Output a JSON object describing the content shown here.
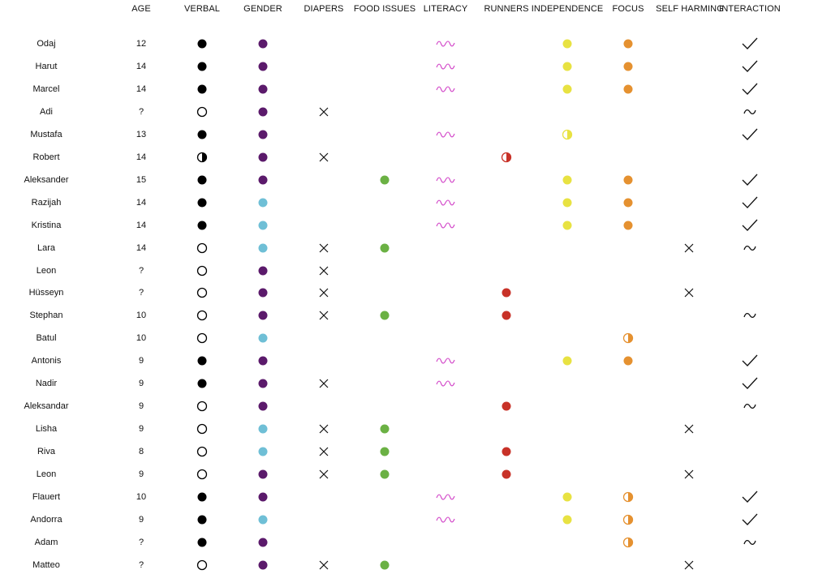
{
  "chart_data": {
    "type": "table",
    "columns": [
      {
        "key": "name",
        "label": ""
      },
      {
        "key": "age",
        "label": "AGE"
      },
      {
        "key": "verbal",
        "label": "VERBAL"
      },
      {
        "key": "gender",
        "label": "GENDER"
      },
      {
        "key": "diapers",
        "label": "DIAPERS"
      },
      {
        "key": "food",
        "label": "FOOD ISSUES"
      },
      {
        "key": "literacy",
        "label": "LITERACY"
      },
      {
        "key": "runners",
        "label": "RUNNERS"
      },
      {
        "key": "independence",
        "label": "INDEPENDENCE"
      },
      {
        "key": "focus",
        "label": "FOCUS"
      },
      {
        "key": "selfharm",
        "label": "SELF HARMING"
      },
      {
        "key": "interaction",
        "label": "INTERACTION"
      }
    ],
    "colors": {
      "verbal": "#000000",
      "gender_purple": "#5b1a6b",
      "gender_blue": "#6fbfd6",
      "food": "#6bb144",
      "literacy": "#d03ec6",
      "runners": "#c83228",
      "independence": "#e8e242",
      "focus": "#e59130"
    },
    "rows": [
      {
        "name": "Odaj",
        "age": "12",
        "verbal": "full",
        "gender": "purple",
        "diapers": "",
        "food": "",
        "literacy": "wave",
        "runners": "",
        "independence": "full",
        "focus": "full",
        "selfharm": "",
        "interaction": "check"
      },
      {
        "name": "Harut",
        "age": "14",
        "verbal": "full",
        "gender": "purple",
        "diapers": "",
        "food": "",
        "literacy": "wave",
        "runners": "",
        "independence": "full",
        "focus": "full",
        "selfharm": "",
        "interaction": "check"
      },
      {
        "name": "Marcel",
        "age": "14",
        "verbal": "full",
        "gender": "purple",
        "diapers": "",
        "food": "",
        "literacy": "wave",
        "runners": "",
        "independence": "full",
        "focus": "full",
        "selfharm": "",
        "interaction": "check"
      },
      {
        "name": "Adi",
        "age": "?",
        "verbal": "empty",
        "gender": "purple",
        "diapers": "x",
        "food": "",
        "literacy": "",
        "runners": "",
        "independence": "",
        "focus": "",
        "selfharm": "",
        "interaction": "tilde"
      },
      {
        "name": "Mustafa",
        "age": "13",
        "verbal": "full",
        "gender": "purple",
        "diapers": "",
        "food": "",
        "literacy": "wave",
        "runners": "",
        "independence": "half",
        "focus": "",
        "selfharm": "",
        "interaction": "check"
      },
      {
        "name": "Robert",
        "age": "14",
        "verbal": "half",
        "gender": "purple",
        "diapers": "x",
        "food": "",
        "literacy": "",
        "runners": "half",
        "independence": "",
        "focus": "",
        "selfharm": "",
        "interaction": ""
      },
      {
        "name": "Aleksander",
        "age": "15",
        "verbal": "full",
        "gender": "purple",
        "diapers": "",
        "food": "full",
        "literacy": "wave",
        "runners": "",
        "independence": "full",
        "focus": "full",
        "selfharm": "",
        "interaction": "check"
      },
      {
        "name": "Razijah",
        "age": "14",
        "verbal": "full",
        "gender": "blue",
        "diapers": "",
        "food": "",
        "literacy": "wave",
        "runners": "",
        "independence": "full",
        "focus": "full",
        "selfharm": "",
        "interaction": "check"
      },
      {
        "name": "Kristina",
        "age": "14",
        "verbal": "full",
        "gender": "blue",
        "diapers": "",
        "food": "",
        "literacy": "wave",
        "runners": "",
        "independence": "full",
        "focus": "full",
        "selfharm": "",
        "interaction": "check"
      },
      {
        "name": "Lara",
        "age": "14",
        "verbal": "empty",
        "gender": "blue",
        "diapers": "x",
        "food": "full",
        "literacy": "",
        "runners": "",
        "independence": "",
        "focus": "",
        "selfharm": "x",
        "interaction": "tilde"
      },
      {
        "name": "Leon",
        "age": "?",
        "verbal": "empty",
        "gender": "purple",
        "diapers": "x",
        "food": "",
        "literacy": "",
        "runners": "",
        "independence": "",
        "focus": "",
        "selfharm": "",
        "interaction": ""
      },
      {
        "name": "Hüsseyn",
        "age": "?",
        "verbal": "empty",
        "gender": "purple",
        "diapers": "x",
        "food": "",
        "literacy": "",
        "runners": "full",
        "independence": "",
        "focus": "",
        "selfharm": "x",
        "interaction": ""
      },
      {
        "name": "Stephan",
        "age": "10",
        "verbal": "empty",
        "gender": "purple",
        "diapers": "x",
        "food": "full",
        "literacy": "",
        "runners": "full",
        "independence": "",
        "focus": "",
        "selfharm": "",
        "interaction": "tilde"
      },
      {
        "name": "Batul",
        "age": "10",
        "verbal": "empty",
        "gender": "blue",
        "diapers": "",
        "food": "",
        "literacy": "",
        "runners": "",
        "independence": "",
        "focus": "half",
        "selfharm": "",
        "interaction": ""
      },
      {
        "name": "Antonis",
        "age": "9",
        "verbal": "full",
        "gender": "purple",
        "diapers": "",
        "food": "",
        "literacy": "wave",
        "runners": "",
        "independence": "full",
        "focus": "full",
        "selfharm": "",
        "interaction": "check"
      },
      {
        "name": "Nadir",
        "age": "9",
        "verbal": "full",
        "gender": "purple",
        "diapers": "x",
        "food": "",
        "literacy": "wave",
        "runners": "",
        "independence": "",
        "focus": "",
        "selfharm": "",
        "interaction": "check"
      },
      {
        "name": "Aleksandar",
        "age": "9",
        "verbal": "empty",
        "gender": "purple",
        "diapers": "",
        "food": "",
        "literacy": "",
        "runners": "full",
        "independence": "",
        "focus": "",
        "selfharm": "",
        "interaction": "tilde"
      },
      {
        "name": "Lisha",
        "age": "9",
        "verbal": "empty",
        "gender": "blue",
        "diapers": "x",
        "food": "full",
        "literacy": "",
        "runners": "",
        "independence": "",
        "focus": "",
        "selfharm": "x",
        "interaction": ""
      },
      {
        "name": "Riva",
        "age": "8",
        "verbal": "empty",
        "gender": "blue",
        "diapers": "x",
        "food": "full",
        "literacy": "",
        "runners": "full",
        "independence": "",
        "focus": "",
        "selfharm": "",
        "interaction": ""
      },
      {
        "name": "Leon",
        "age": "9",
        "verbal": "empty",
        "gender": "purple",
        "diapers": "x",
        "food": "full",
        "literacy": "",
        "runners": "full",
        "independence": "",
        "focus": "",
        "selfharm": "x",
        "interaction": ""
      },
      {
        "name": "Flauert",
        "age": "10",
        "verbal": "full",
        "gender": "purple",
        "diapers": "",
        "food": "",
        "literacy": "wave",
        "runners": "",
        "independence": "full",
        "focus": "half",
        "selfharm": "",
        "interaction": "check"
      },
      {
        "name": "Andorra",
        "age": "9",
        "verbal": "full",
        "gender": "blue",
        "diapers": "",
        "food": "",
        "literacy": "wave",
        "runners": "",
        "independence": "full",
        "focus": "half",
        "selfharm": "",
        "interaction": "check"
      },
      {
        "name": "Adam",
        "age": "?",
        "verbal": "full",
        "gender": "purple",
        "diapers": "",
        "food": "",
        "literacy": "",
        "runners": "",
        "independence": "",
        "focus": "half",
        "selfharm": "",
        "interaction": "tilde"
      },
      {
        "name": "Matteo",
        "age": "?",
        "verbal": "empty",
        "gender": "purple",
        "diapers": "x",
        "food": "full",
        "literacy": "",
        "runners": "",
        "independence": "",
        "focus": "",
        "selfharm": "x",
        "interaction": ""
      }
    ]
  }
}
